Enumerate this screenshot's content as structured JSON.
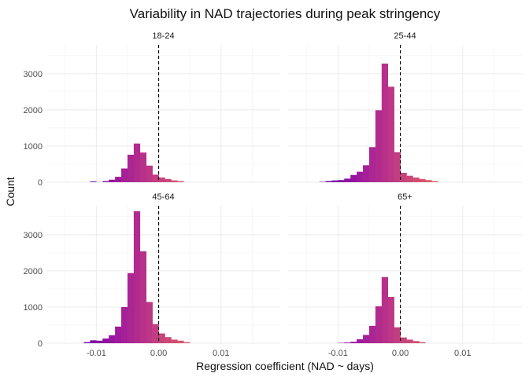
{
  "chart_data": {
    "type": "histogram",
    "title": "Variability in NAD trajectories during peak stringency",
    "xlabel": "Regression coefficient (NAD ~ days)",
    "ylabel": "Count",
    "x_ticks": [
      -0.01,
      0.0,
      0.01
    ],
    "x_tick_labels": [
      "-0.01",
      "0.00",
      "0.01"
    ],
    "y_ticks": [
      0,
      1000,
      2000,
      3000
    ],
    "y_tick_labels": [
      "0",
      "1000",
      "2000",
      "3000"
    ],
    "xlim": [
      -0.018,
      0.0195
    ],
    "ylim": [
      0,
      3800
    ],
    "bin_width": 0.001,
    "bin_starts": [
      -0.013,
      -0.012,
      -0.011,
      -0.01,
      -0.009,
      -0.008,
      -0.007,
      -0.006,
      -0.005,
      -0.004,
      -0.003,
      -0.002,
      -0.001,
      0.0,
      0.001,
      0.002,
      0.003,
      0.004,
      0.005,
      0.006,
      0.007,
      0.008,
      0.009
    ],
    "reference_line_x": 0,
    "grid": true,
    "color_gradient": [
      "#6a00a8",
      "#9c179e",
      "#bd3786",
      "#d8576b",
      "#ed7953"
    ],
    "panels": [
      {
        "label": "18-24",
        "values": [
          0,
          0,
          20,
          0,
          30,
          70,
          150,
          380,
          760,
          1070,
          820,
          460,
          210,
          130,
          90,
          50,
          30,
          0,
          0,
          0,
          0,
          0,
          0
        ]
      },
      {
        "label": "25-44",
        "values": [
          10,
          30,
          50,
          60,
          100,
          200,
          290,
          470,
          970,
          1990,
          3280,
          2640,
          830,
          260,
          180,
          130,
          90,
          60,
          30,
          0,
          0,
          0,
          0
        ]
      },
      {
        "label": "45-64",
        "values": [
          0,
          30,
          80,
          70,
          130,
          220,
          460,
          1000,
          1940,
          3650,
          2540,
          1140,
          530,
          270,
          170,
          100,
          70,
          30,
          0,
          0,
          0,
          0,
          0
        ]
      },
      {
        "label": "65+",
        "values": [
          0,
          0,
          0,
          10,
          20,
          40,
          110,
          230,
          480,
          1020,
          1830,
          1280,
          440,
          160,
          100,
          60,
          30,
          0,
          0,
          0,
          0,
          0,
          0
        ]
      }
    ]
  }
}
